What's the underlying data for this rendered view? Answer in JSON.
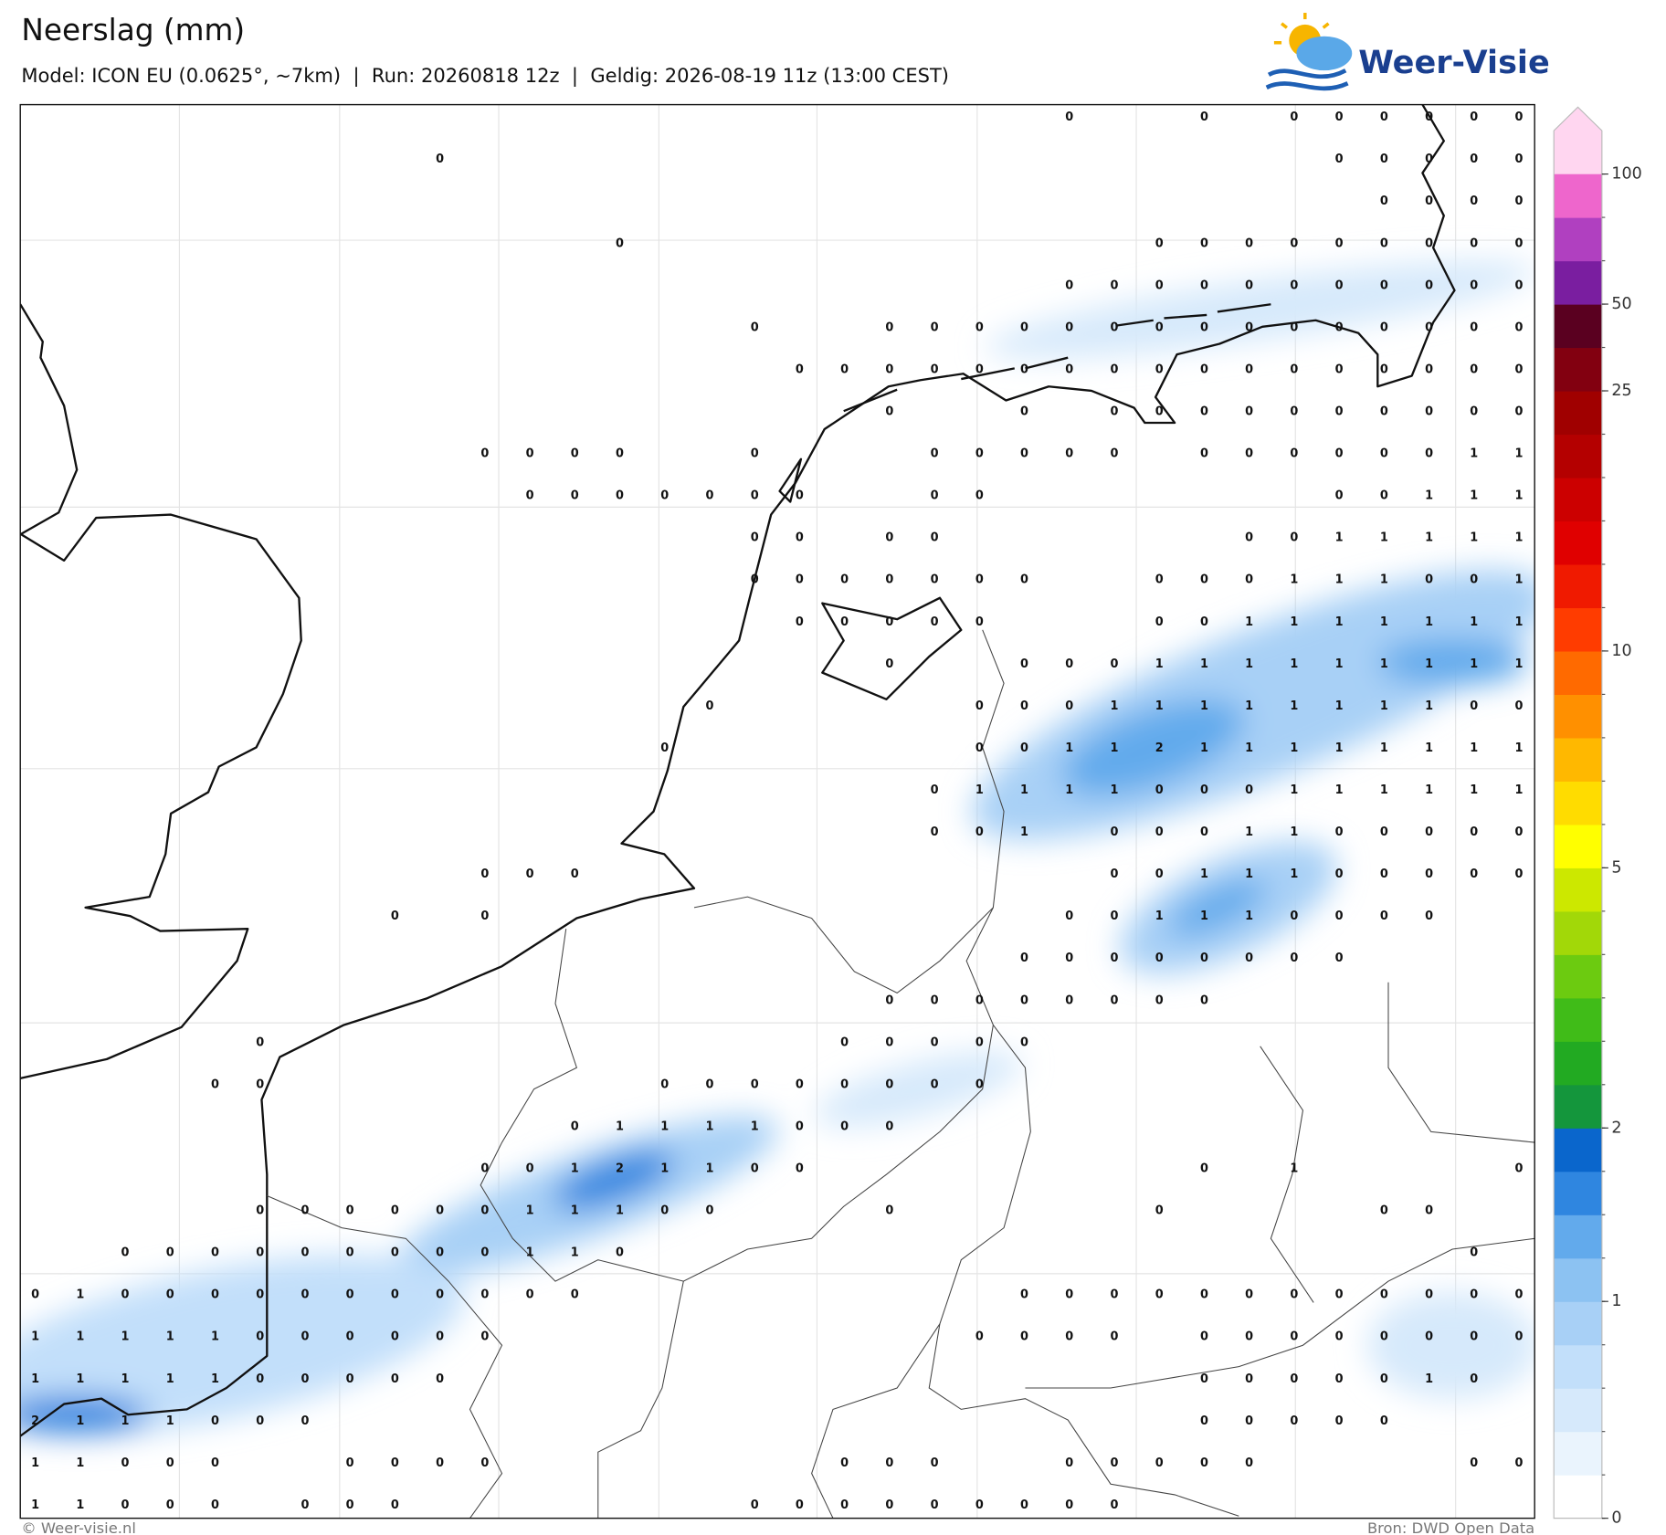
{
  "header": {
    "title": "Neerslag (mm)",
    "subtitle": "Model: ICON EU (0.0625°, ~7km)  |  Run: 20260818 12z  |  Geldig: 2026-08-19 11z (13:00 CEST)",
    "logo": "Weer-Visie"
  },
  "map": {
    "grid_values": [
      [
        null,
        null,
        null,
        null,
        null,
        null,
        null,
        null,
        null,
        null,
        null,
        null,
        null,
        null,
        null,
        null,
        null,
        null,
        null,
        null,
        null,
        null,
        null,
        0,
        null,
        null,
        0,
        null,
        0,
        0,
        0,
        0,
        0,
        0
      ],
      [
        null,
        null,
        null,
        null,
        null,
        null,
        null,
        null,
        null,
        0,
        null,
        null,
        null,
        null,
        null,
        null,
        null,
        null,
        null,
        null,
        null,
        null,
        null,
        null,
        null,
        null,
        null,
        null,
        null,
        0,
        0,
        0,
        0,
        0
      ],
      [
        null,
        null,
        null,
        null,
        null,
        null,
        null,
        null,
        null,
        null,
        null,
        null,
        null,
        null,
        null,
        null,
        null,
        null,
        null,
        null,
        null,
        null,
        null,
        null,
        null,
        null,
        null,
        null,
        null,
        null,
        0,
        0,
        0,
        0
      ],
      [
        null,
        null,
        null,
        null,
        null,
        null,
        null,
        null,
        null,
        null,
        null,
        null,
        null,
        0,
        null,
        null,
        null,
        null,
        null,
        null,
        null,
        null,
        null,
        null,
        null,
        0,
        0,
        0,
        0,
        0,
        0,
        0,
        0,
        0
      ],
      [
        null,
        null,
        null,
        null,
        null,
        null,
        null,
        null,
        null,
        null,
        null,
        null,
        null,
        null,
        null,
        null,
        null,
        null,
        null,
        null,
        null,
        null,
        null,
        0,
        0,
        0,
        0,
        0,
        0,
        0,
        0,
        0,
        0,
        0
      ],
      [
        null,
        null,
        null,
        null,
        null,
        null,
        null,
        null,
        null,
        null,
        null,
        null,
        null,
        null,
        null,
        null,
        0,
        null,
        null,
        0,
        0,
        0,
        0,
        0,
        0,
        0,
        0,
        0,
        0,
        0,
        0,
        0,
        0,
        0
      ],
      [
        null,
        null,
        null,
        null,
        null,
        null,
        null,
        null,
        null,
        null,
        null,
        null,
        null,
        null,
        null,
        null,
        null,
        0,
        0,
        0,
        0,
        0,
        0,
        0,
        0,
        0,
        0,
        0,
        0,
        0,
        0,
        0,
        0,
        0
      ],
      [
        null,
        null,
        null,
        null,
        null,
        null,
        null,
        null,
        null,
        null,
        null,
        null,
        null,
        null,
        null,
        null,
        null,
        null,
        null,
        0,
        null,
        null,
        0,
        null,
        0,
        0,
        0,
        0,
        0,
        0,
        0,
        0,
        0,
        0
      ],
      [
        null,
        null,
        null,
        null,
        null,
        null,
        null,
        null,
        null,
        null,
        0,
        0,
        0,
        0,
        null,
        null,
        0,
        null,
        null,
        null,
        0,
        0,
        0,
        0,
        0,
        null,
        0,
        0,
        0,
        0,
        0,
        0,
        1,
        1
      ],
      [
        null,
        null,
        null,
        null,
        null,
        null,
        null,
        null,
        null,
        null,
        null,
        0,
        0,
        0,
        0,
        0,
        0,
        0,
        null,
        null,
        0,
        0,
        null,
        null,
        null,
        null,
        null,
        null,
        null,
        0,
        0,
        1,
        1,
        1
      ],
      [
        null,
        null,
        null,
        null,
        null,
        null,
        null,
        null,
        null,
        null,
        null,
        null,
        null,
        null,
        null,
        null,
        0,
        0,
        null,
        0,
        0,
        null,
        null,
        null,
        null,
        null,
        null,
        0,
        0,
        1,
        1,
        1,
        1,
        1
      ],
      [
        null,
        null,
        null,
        null,
        null,
        null,
        null,
        null,
        null,
        null,
        null,
        null,
        null,
        null,
        null,
        null,
        0,
        0,
        0,
        0,
        0,
        0,
        0,
        null,
        null,
        0,
        0,
        0,
        1,
        1,
        1,
        0,
        0,
        1
      ],
      [
        null,
        null,
        null,
        null,
        null,
        null,
        null,
        null,
        null,
        null,
        null,
        null,
        null,
        null,
        null,
        null,
        null,
        0,
        0,
        0,
        0,
        0,
        null,
        null,
        null,
        0,
        0,
        1,
        1,
        1,
        1,
        1,
        1,
        1
      ],
      [
        null,
        null,
        null,
        null,
        null,
        null,
        null,
        null,
        null,
        null,
        null,
        null,
        null,
        null,
        null,
        null,
        null,
        null,
        null,
        0,
        null,
        null,
        0,
        0,
        0,
        1,
        1,
        1,
        1,
        1,
        1,
        1,
        1,
        1
      ],
      [
        null,
        null,
        null,
        null,
        null,
        null,
        null,
        null,
        null,
        null,
        null,
        null,
        null,
        null,
        null,
        0,
        null,
        null,
        null,
        null,
        null,
        0,
        0,
        0,
        1,
        1,
        1,
        1,
        1,
        1,
        1,
        1,
        0,
        0
      ],
      [
        null,
        null,
        null,
        null,
        null,
        null,
        null,
        null,
        null,
        null,
        null,
        null,
        null,
        null,
        0,
        null,
        null,
        null,
        null,
        null,
        null,
        0,
        0,
        1,
        1,
        2,
        1,
        1,
        1,
        1,
        1,
        1,
        1,
        1
      ],
      [
        null,
        null,
        null,
        null,
        null,
        null,
        null,
        null,
        null,
        null,
        null,
        null,
        null,
        null,
        null,
        null,
        null,
        null,
        null,
        null,
        0,
        1,
        1,
        1,
        1,
        0,
        0,
        0,
        1,
        1,
        1,
        1,
        1,
        1
      ],
      [
        null,
        null,
        null,
        null,
        null,
        null,
        null,
        null,
        null,
        null,
        null,
        null,
        null,
        null,
        null,
        null,
        null,
        null,
        null,
        null,
        0,
        0,
        1,
        null,
        0,
        0,
        0,
        1,
        1,
        0,
        0,
        0,
        0,
        0
      ],
      [
        null,
        null,
        null,
        null,
        null,
        null,
        null,
        null,
        null,
        null,
        0,
        0,
        0,
        null,
        null,
        null,
        null,
        null,
        null,
        null,
        null,
        null,
        null,
        null,
        0,
        0,
        1,
        1,
        1,
        0,
        0,
        0,
        0,
        0
      ],
      [
        null,
        null,
        null,
        null,
        null,
        null,
        null,
        null,
        0,
        null,
        0,
        null,
        null,
        null,
        null,
        null,
        null,
        null,
        null,
        null,
        null,
        null,
        null,
        0,
        0,
        1,
        1,
        1,
        0,
        0,
        0,
        0,
        null,
        null
      ],
      [
        null,
        null,
        null,
        null,
        null,
        null,
        null,
        null,
        null,
        null,
        null,
        null,
        null,
        null,
        null,
        null,
        null,
        null,
        null,
        null,
        null,
        null,
        0,
        0,
        0,
        0,
        0,
        0,
        0,
        0,
        null,
        null,
        null,
        null
      ],
      [
        null,
        null,
        null,
        null,
        null,
        null,
        null,
        null,
        null,
        null,
        null,
        null,
        null,
        null,
        null,
        null,
        null,
        null,
        null,
        0,
        0,
        0,
        0,
        0,
        0,
        0,
        0,
        null,
        null,
        null,
        null,
        null,
        null,
        null
      ],
      [
        null,
        null,
        null,
        null,
        null,
        0,
        null,
        null,
        null,
        null,
        null,
        null,
        null,
        null,
        null,
        null,
        null,
        null,
        0,
        0,
        0,
        0,
        0,
        null,
        null,
        null,
        null,
        null,
        null,
        null,
        null,
        null,
        null,
        null
      ],
      [
        null,
        null,
        null,
        null,
        0,
        0,
        null,
        null,
        null,
        null,
        null,
        null,
        null,
        null,
        0,
        0,
        0,
        0,
        0,
        0,
        0,
        0,
        null,
        null,
        null,
        null,
        null,
        null,
        null,
        null,
        null,
        null,
        null,
        null
      ],
      [
        null,
        null,
        null,
        null,
        null,
        null,
        null,
        null,
        null,
        null,
        null,
        null,
        0,
        1,
        1,
        1,
        1,
        0,
        0,
        0,
        null,
        null,
        null,
        null,
        null,
        null,
        null,
        null,
        null,
        null,
        null,
        null,
        null,
        null
      ],
      [
        null,
        null,
        null,
        null,
        null,
        null,
        null,
        null,
        null,
        null,
        0,
        0,
        1,
        2,
        1,
        1,
        0,
        0,
        null,
        null,
        null,
        null,
        null,
        null,
        null,
        null,
        0,
        null,
        1,
        null,
        null,
        null,
        null,
        0
      ],
      [
        null,
        null,
        null,
        null,
        null,
        0,
        0,
        0,
        0,
        0,
        0,
        1,
        1,
        1,
        0,
        0,
        null,
        null,
        null,
        0,
        null,
        null,
        null,
        null,
        null,
        0,
        null,
        null,
        null,
        null,
        0,
        0,
        null,
        null
      ],
      [
        null,
        null,
        0,
        0,
        0,
        0,
        0,
        0,
        0,
        0,
        0,
        1,
        1,
        0,
        null,
        null,
        null,
        null,
        null,
        null,
        null,
        null,
        null,
        null,
        null,
        null,
        null,
        null,
        null,
        null,
        null,
        null,
        0,
        null
      ],
      [
        0,
        1,
        0,
        0,
        0,
        0,
        0,
        0,
        0,
        0,
        0,
        0,
        0,
        null,
        null,
        null,
        null,
        null,
        null,
        null,
        null,
        null,
        0,
        0,
        0,
        0,
        0,
        0,
        0,
        0,
        0,
        0,
        0,
        0
      ],
      [
        1,
        1,
        1,
        1,
        1,
        0,
        0,
        0,
        0,
        0,
        0,
        null,
        null,
        null,
        null,
        null,
        null,
        null,
        null,
        null,
        null,
        0,
        0,
        0,
        0,
        null,
        0,
        0,
        0,
        0,
        0,
        0,
        0,
        0
      ],
      [
        1,
        1,
        1,
        1,
        1,
        0,
        0,
        0,
        0,
        0,
        null,
        null,
        null,
        null,
        null,
        null,
        null,
        null,
        null,
        null,
        null,
        null,
        null,
        null,
        null,
        null,
        0,
        0,
        0,
        0,
        0,
        1,
        0,
        null
      ],
      [
        2,
        1,
        1,
        1,
        0,
        0,
        0,
        null,
        null,
        null,
        null,
        null,
        null,
        null,
        null,
        null,
        null,
        null,
        null,
        null,
        null,
        null,
        null,
        null,
        null,
        null,
        0,
        0,
        0,
        0,
        0,
        null,
        null,
        null
      ],
      [
        1,
        1,
        0,
        0,
        0,
        null,
        null,
        0,
        0,
        0,
        0,
        null,
        null,
        null,
        null,
        null,
        null,
        null,
        0,
        0,
        0,
        null,
        null,
        0,
        0,
        0,
        0,
        0,
        null,
        null,
        null,
        null,
        0,
        0
      ],
      [
        1,
        1,
        0,
        0,
        0,
        null,
        0,
        0,
        0,
        null,
        null,
        null,
        null,
        null,
        null,
        null,
        0,
        0,
        0,
        0,
        0,
        0,
        0,
        0,
        0,
        null,
        null,
        null,
        null,
        null,
        null,
        null,
        null,
        null
      ]
    ]
  },
  "colorbar": {
    "colors": [
      "#ffffff",
      "#eaf4fd",
      "#d6e9fb",
      "#c2dffa",
      "#a8d0f6",
      "#8cc2f2",
      "#62aaec",
      "#2f86e0",
      "#0a66cc",
      "#14963c",
      "#22aa22",
      "#40bc18",
      "#6ccb10",
      "#a2d808",
      "#cce800",
      "#ffff00",
      "#ffdc00",
      "#ffb800",
      "#ff9000",
      "#ff6a00",
      "#ff3c00",
      "#f01a00",
      "#e00000",
      "#cc0000",
      "#b40000",
      "#a00000",
      "#820010",
      "#5a0020",
      "#7a1ea0",
      "#b040c0",
      "#ee66cc",
      "#ffd6f0"
    ],
    "levels": [
      0,
      0.2,
      0.4,
      0.6,
      0.8,
      1,
      1.25,
      1.5,
      1.75,
      2,
      2.5,
      3,
      3.5,
      4,
      4.5,
      5,
      6,
      7,
      8,
      9,
      10,
      12.5,
      15,
      17.5,
      20,
      22.5,
      25,
      37.5,
      50,
      66.7,
      83.3,
      100
    ],
    "ticks": [
      0,
      1,
      2,
      5,
      10,
      25,
      50,
      100
    ]
  },
  "footer": {
    "copyright": "© Weer-visie.nl",
    "source": "Bron: DWD Open Data"
  }
}
